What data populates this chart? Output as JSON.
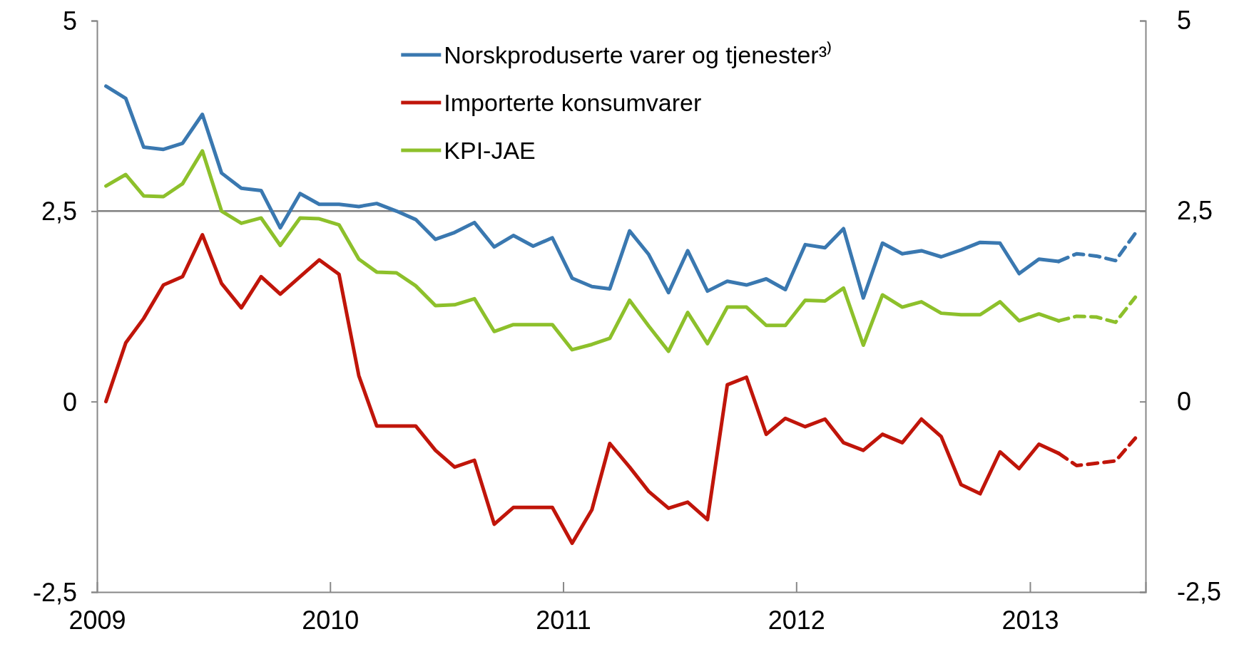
{
  "chart_data": {
    "type": "line",
    "x": [
      "2009-01-15",
      "2009-02-15",
      "2009-03-15",
      "2009-04-15",
      "2009-05-15",
      "2009-06-15",
      "2009-07-15",
      "2009-08-15",
      "2009-09-15",
      "2009-10-15",
      "2009-11-15",
      "2009-12-15",
      "2010-01-15",
      "2010-02-15",
      "2010-03-15",
      "2010-04-15",
      "2010-05-15",
      "2010-06-15",
      "2010-07-15",
      "2010-08-15",
      "2010-09-15",
      "2010-10-15",
      "2010-11-15",
      "2010-12-15",
      "2011-01-15",
      "2011-02-15",
      "2011-03-15",
      "2011-04-15",
      "2011-05-15",
      "2011-06-15",
      "2011-07-15",
      "2011-08-15",
      "2011-09-15",
      "2011-10-15",
      "2011-11-15",
      "2011-12-15",
      "2012-01-15",
      "2012-02-15",
      "2012-03-15",
      "2012-04-15",
      "2012-05-15",
      "2012-06-15",
      "2012-07-15",
      "2012-08-15",
      "2012-09-15",
      "2012-10-15",
      "2012-11-15",
      "2012-12-15",
      "2013-01-15",
      "2013-02-15",
      "2013-03-15",
      "2013-04-15",
      "2013-05-15",
      "2013-06-15"
    ],
    "series": [
      {
        "name": "Norskproduserte varer og tjenester³⁾",
        "color": "#3a78b0",
        "line_style": "solid",
        "values": [
          4.14,
          3.98,
          3.34,
          3.31,
          3.39,
          3.77,
          3.0,
          2.8,
          2.77,
          2.28,
          2.73,
          2.59,
          2.59,
          2.56,
          2.6,
          2.5,
          2.39,
          2.13,
          2.22,
          2.35,
          2.03,
          2.18,
          2.04,
          2.15,
          1.62,
          1.51,
          1.48,
          2.24,
          1.93,
          1.43,
          1.98,
          1.45,
          1.58,
          1.53,
          1.61,
          1.47,
          2.06,
          2.02,
          2.27,
          1.36,
          2.08,
          1.94,
          1.98,
          1.9,
          1.99,
          2.09,
          2.08,
          1.68,
          1.87,
          1.84,
          null,
          null,
          null,
          null
        ]
      },
      {
        "name": "Importerte konsumvarer",
        "color": "#c0150a",
        "line_style": "solid",
        "values": [
          0,
          0.77,
          1.09,
          1.53,
          1.64,
          2.19,
          1.55,
          1.23,
          1.64,
          1.41,
          1.64,
          1.86,
          1.67,
          0.34,
          -0.32,
          -0.32,
          -0.32,
          -0.64,
          -0.86,
          -0.77,
          -1.61,
          -1.39,
          -1.39,
          -1.39,
          -1.86,
          -1.42,
          -0.55,
          -0.86,
          -1.18,
          -1.4,
          -1.32,
          -1.55,
          0.22,
          0.32,
          -0.43,
          -0.22,
          -0.33,
          -0.23,
          -0.54,
          -0.64,
          -0.43,
          -0.54,
          -0.23,
          -0.46,
          -1.09,
          -1.21,
          -0.66,
          -0.88,
          -0.56,
          -0.68,
          null,
          null,
          null,
          null
        ]
      },
      {
        "name": "KPI-JAE",
        "color": "#8dc02b",
        "line_style": "solid",
        "values": [
          2.83,
          2.98,
          2.7,
          2.69,
          2.86,
          3.29,
          2.5,
          2.34,
          2.41,
          2.05,
          2.41,
          2.4,
          2.32,
          1.87,
          1.7,
          1.69,
          1.52,
          1.26,
          1.27,
          1.35,
          0.92,
          1.01,
          1.01,
          1.01,
          0.68,
          0.75,
          0.83,
          1.33,
          0.99,
          0.66,
          1.17,
          0.76,
          1.24,
          1.24,
          1.0,
          1.0,
          1.33,
          1.32,
          1.49,
          0.74,
          1.4,
          1.24,
          1.31,
          1.16,
          1.14,
          1.14,
          1.31,
          1.06,
          1.15,
          1.06,
          null,
          null,
          null,
          null
        ]
      },
      {
        "color": "#3a78b0",
        "line_style": "dashed",
        "values": [
          null,
          null,
          null,
          null,
          null,
          null,
          null,
          null,
          null,
          null,
          null,
          null,
          null,
          null,
          null,
          null,
          null,
          null,
          null,
          null,
          null,
          null,
          null,
          null,
          null,
          null,
          null,
          null,
          null,
          null,
          null,
          null,
          null,
          null,
          null,
          null,
          null,
          null,
          null,
          null,
          null,
          null,
          null,
          null,
          null,
          null,
          null,
          null,
          null,
          1.84,
          1.94,
          1.91,
          1.85,
          2.21
        ]
      },
      {
        "color": "#c0150a",
        "line_style": "dashed",
        "values": [
          null,
          null,
          null,
          null,
          null,
          null,
          null,
          null,
          null,
          null,
          null,
          null,
          null,
          null,
          null,
          null,
          null,
          null,
          null,
          null,
          null,
          null,
          null,
          null,
          null,
          null,
          null,
          null,
          null,
          null,
          null,
          null,
          null,
          null,
          null,
          null,
          null,
          null,
          null,
          null,
          null,
          null,
          null,
          null,
          null,
          null,
          null,
          null,
          null,
          -0.68,
          -0.84,
          -0.81,
          -0.78,
          -0.48
        ]
      },
      {
        "color": "#8dc02b",
        "line_style": "dashed",
        "values": [
          null,
          null,
          null,
          null,
          null,
          null,
          null,
          null,
          null,
          null,
          null,
          null,
          null,
          null,
          null,
          null,
          null,
          null,
          null,
          null,
          null,
          null,
          null,
          null,
          null,
          null,
          null,
          null,
          null,
          null,
          null,
          null,
          null,
          null,
          null,
          null,
          null,
          null,
          null,
          null,
          null,
          null,
          null,
          null,
          null,
          null,
          null,
          null,
          null,
          1.06,
          1.12,
          1.11,
          1.04,
          1.37
        ]
      }
    ],
    "xlim": [
      "2009-01-01",
      "2013-07-01"
    ],
    "xticks": [
      {
        "value": "2009-01-01",
        "label": "2009"
      },
      {
        "value": "2010-01-01",
        "label": "2010"
      },
      {
        "value": "2011-01-01",
        "label": "2011"
      },
      {
        "value": "2012-01-01",
        "label": "2012"
      },
      {
        "value": "2013-01-01",
        "label": "2013"
      }
    ],
    "ylim": [
      -2.5,
      5
    ],
    "yticks": [
      {
        "value": -2.5,
        "label": "-2,5"
      },
      0,
      {
        "value": 2.5,
        "label": "2,5"
      },
      5
    ],
    "y2lim": [
      -2.5,
      5
    ],
    "y2ticks": [
      {
        "value": -2.5,
        "label": "-2,5"
      },
      0,
      {
        "value": 2.5,
        "label": "2,5"
      },
      5
    ],
    "ref_lines": [
      {
        "axis": "y",
        "value": 2.5,
        "color": "#808080"
      }
    ],
    "legend": "top",
    "grid": false
  }
}
